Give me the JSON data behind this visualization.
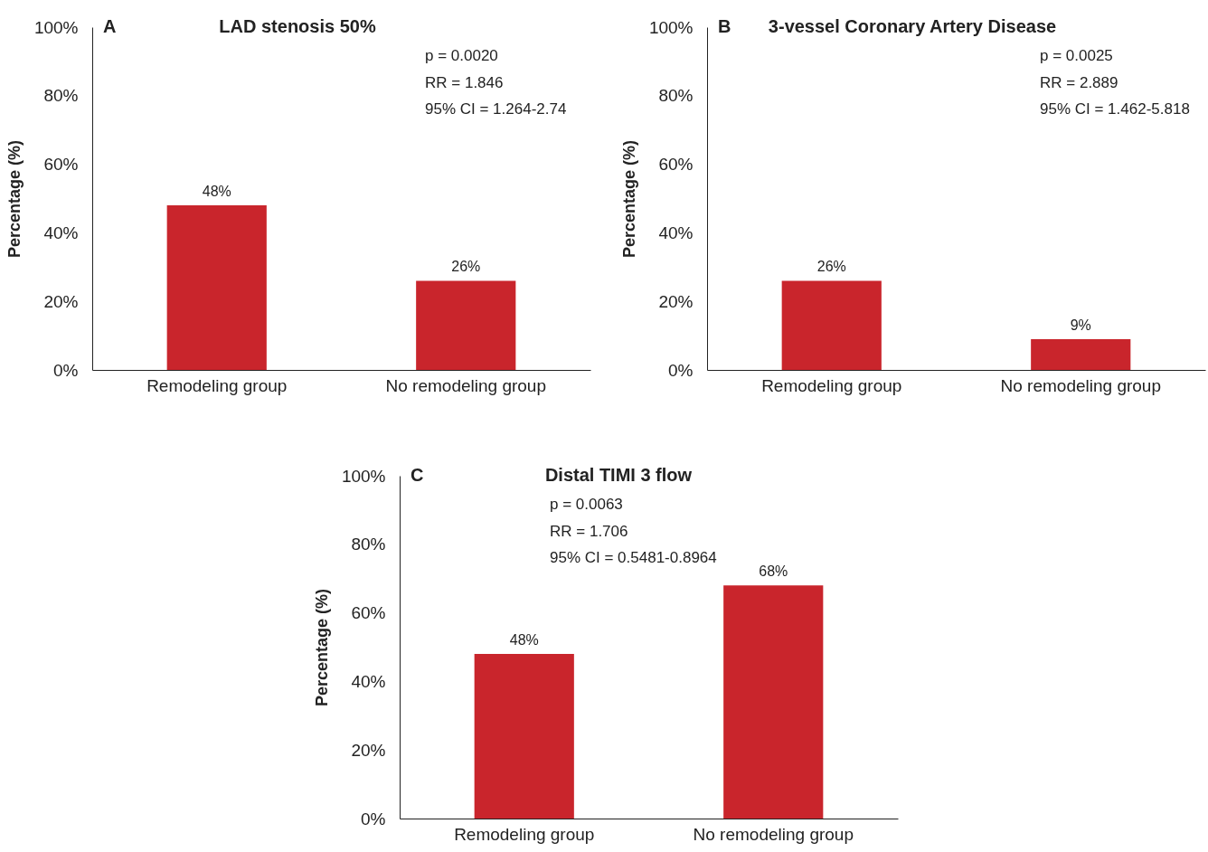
{
  "chart_data": [
    {
      "type": "bar",
      "title": "LAD stenosis 50%",
      "ylabel": "Percentage (%)",
      "categories": [
        "Remodeling group",
        "No remodeling group"
      ],
      "values": [
        48,
        26
      ],
      "value_labels": [
        "48%",
        "26%"
      ],
      "color": "#c9252c",
      "ylim": [
        0,
        100
      ],
      "yticks": [
        {
          "value": 0,
          "label": "0%"
        },
        {
          "value": 20,
          "label": "20%"
        },
        {
          "value": 40,
          "label": "40%"
        },
        {
          "value": 60,
          "label": "60%"
        },
        {
          "value": 80,
          "label": "80%"
        },
        {
          "value": 100,
          "label": "100%"
        }
      ],
      "grid": false,
      "annotations": [
        "A",
        "p = 0.0020",
        "RR = 1.846",
        "95% CI = 1.264-2.74"
      ]
    },
    {
      "type": "bar",
      "title": "3-vessel Coronary Artery Disease",
      "ylabel": "Percentage (%)",
      "categories": [
        "Remodeling group",
        "No remodeling group"
      ],
      "values": [
        26,
        9
      ],
      "value_labels": [
        "26%",
        "9%"
      ],
      "color": "#c9252c",
      "ylim": [
        0,
        100
      ],
      "yticks": [
        {
          "value": 0,
          "label": "0%"
        },
        {
          "value": 20,
          "label": "20%"
        },
        {
          "value": 40,
          "label": "40%"
        },
        {
          "value": 60,
          "label": "60%"
        },
        {
          "value": 80,
          "label": "80%"
        },
        {
          "value": 100,
          "label": "100%"
        }
      ],
      "grid": false,
      "annotations": [
        "B",
        "p = 0.0025",
        "RR = 2.889",
        "95% CI = 1.462-5.818"
      ]
    },
    {
      "type": "bar",
      "title": "Distal TIMI 3 flow",
      "ylabel": "Percentage (%)",
      "categories": [
        "Remodeling group",
        "No remodeling group"
      ],
      "values": [
        48,
        68
      ],
      "value_labels": [
        "48%",
        "68%"
      ],
      "color": "#c9252c",
      "ylim": [
        0,
        100
      ],
      "yticks": [
        {
          "value": 0,
          "label": "0%"
        },
        {
          "value": 20,
          "label": "20%"
        },
        {
          "value": 40,
          "label": "40%"
        },
        {
          "value": 60,
          "label": "60%"
        },
        {
          "value": 80,
          "label": "80%"
        },
        {
          "value": 100,
          "label": "100%"
        }
      ],
      "grid": false,
      "annotations": [
        "C",
        "p = 0.0063",
        "RR = 1.706",
        "95% CI = 0.5481-0.8964"
      ]
    }
  ]
}
